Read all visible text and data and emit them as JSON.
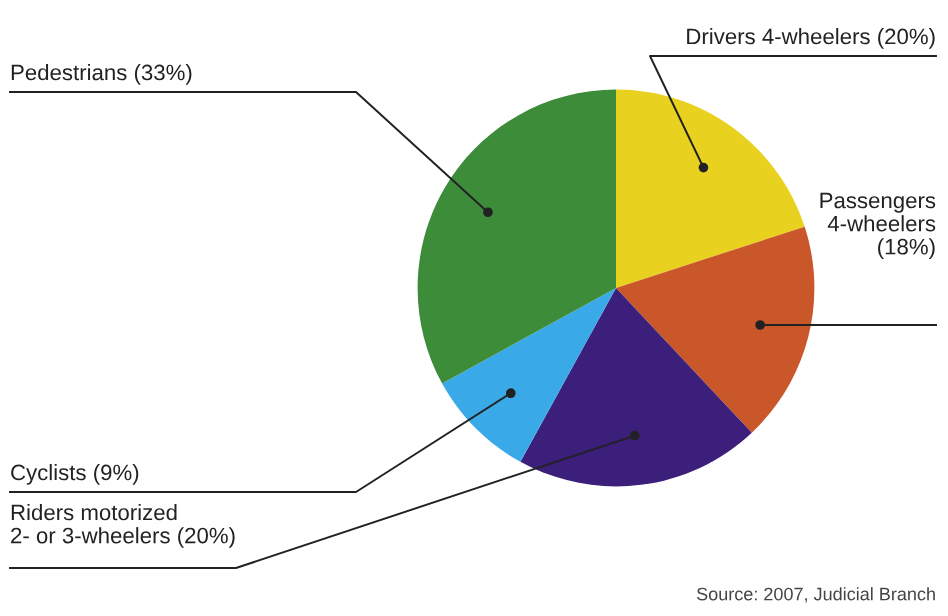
{
  "chart_data": {
    "type": "pie",
    "categories": [
      "Drivers 4-wheelers (20%)",
      "Passengers\n4-wheelers\n(18%)",
      "Riders motorized\n2- or 3-wheelers (20%)",
      "Cyclists (9%)",
      "Pedestrians (33%)"
    ],
    "values": [
      20,
      18,
      20,
      9,
      33
    ],
    "colors": [
      "#e8d11f",
      "#c9572a",
      "#3b1f7a",
      "#39a9e8",
      "#3d8c3a"
    ],
    "annotations": [
      "Source: 2007, Judicial Branch"
    ]
  }
}
